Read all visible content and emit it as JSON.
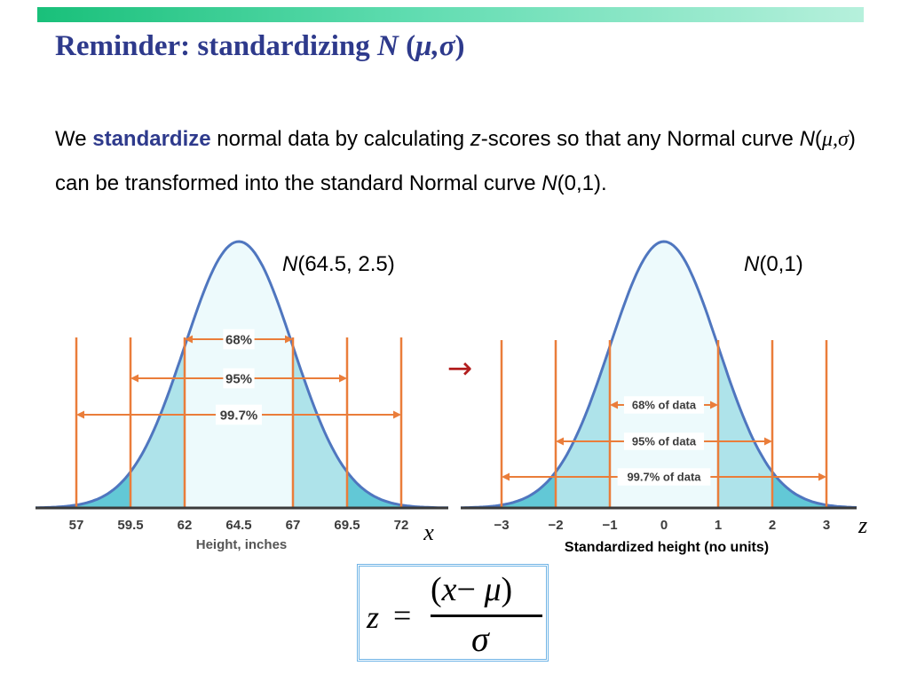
{
  "title": {
    "text": "Reminder: standardizing ",
    "symbol_N": "N",
    "symbol_open": " (",
    "symbol_params": "μ,σ",
    "symbol_close": ")"
  },
  "body": {
    "t1": "We ",
    "kw": "standardize",
    "t2": " normal data by calculating ",
    "z": "z",
    "t3": "-scores so that any Normal curve ",
    "N1": "N",
    "open1": "(",
    "greek": "μ,σ",
    "close1": ")",
    "t4": " can be transformed into the standard Normal curve ",
    "N2": "N",
    "t5": "(0,1)."
  },
  "left_plot": {
    "label_N": "N",
    "label_params": "(64.5, 2.5)",
    "ticks": [
      "57",
      "59.5",
      "62",
      "64.5",
      "67",
      "69.5",
      "72"
    ],
    "axis_title": "Height, inches",
    "var_label": "x",
    "bands": [
      "68%",
      "95%",
      "99.7%"
    ]
  },
  "right_plot": {
    "label_N": "N",
    "label_params": "(0,1)",
    "ticks": [
      "−3",
      "−2",
      "−1",
      "0",
      "1",
      "2",
      "3"
    ],
    "axis_title": "Standardized height (no units)",
    "var_label": "z",
    "bands": [
      "68% of data",
      "95% of data",
      "99.7% of data"
    ]
  },
  "arrow": "→",
  "formula": {
    "lhs": "z",
    "eq": "=",
    "open": "(",
    "x": "x",
    "minus": "−",
    "mu": "μ",
    "close": ")",
    "den": "σ"
  },
  "colors": {
    "title": "#2e3a8c",
    "curve": "#4f76bf",
    "fill_inner": "#edfafc",
    "fill_mid": "#aee3ea",
    "fill_outer": "#62c8d6",
    "band_line": "#ea7d3a",
    "arrow": "#b21e1e"
  }
}
